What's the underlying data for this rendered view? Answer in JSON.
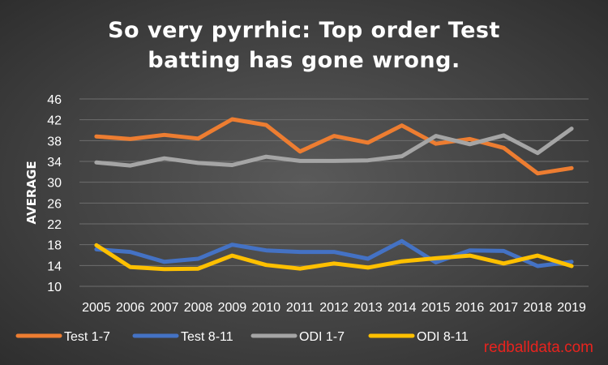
{
  "chart_data": {
    "type": "line",
    "title_lines": [
      "So very pyrrhic: Top order Test",
      "batting has gone wrong."
    ],
    "xlabel": "",
    "ylabel": "AVERAGE",
    "ylim": [
      10,
      46
    ],
    "yticks": [
      10,
      14,
      18,
      22,
      26,
      30,
      34,
      38,
      42,
      46
    ],
    "grid": true,
    "legend_position": "bottom",
    "x": [
      "2005",
      "2006",
      "2007",
      "2008",
      "2009",
      "2010",
      "2011",
      "2012",
      "2013",
      "2014",
      "2015",
      "2016",
      "2017",
      "2018",
      "2019"
    ],
    "series": [
      {
        "name": "Test 1-7",
        "color": "#ed7d31",
        "values": [
          38.8,
          38.3,
          39.1,
          38.4,
          42.1,
          41.0,
          35.9,
          38.9,
          37.6,
          40.9,
          37.4,
          38.3,
          36.6,
          31.7,
          32.7
        ]
      },
      {
        "name": "Test 8-11",
        "color": "#4472c4",
        "values": [
          17.1,
          16.6,
          14.7,
          15.3,
          18.0,
          16.9,
          16.6,
          16.6,
          15.3,
          18.7,
          14.6,
          16.9,
          16.8,
          13.9,
          14.7
        ]
      },
      {
        "name": "ODI 1-7",
        "color": "#a5a5a5",
        "values": [
          33.8,
          33.2,
          34.6,
          33.7,
          33.3,
          34.9,
          34.1,
          34.1,
          34.2,
          35.0,
          38.9,
          37.3,
          39.0,
          35.6,
          40.3
        ]
      },
      {
        "name": "ODI 8-11",
        "color": "#ffc000",
        "values": [
          17.9,
          13.7,
          13.3,
          13.4,
          15.9,
          14.1,
          13.4,
          14.4,
          13.6,
          14.8,
          15.4,
          15.9,
          14.4,
          15.9,
          13.9
        ]
      }
    ]
  },
  "watermark": "redballdata.com"
}
